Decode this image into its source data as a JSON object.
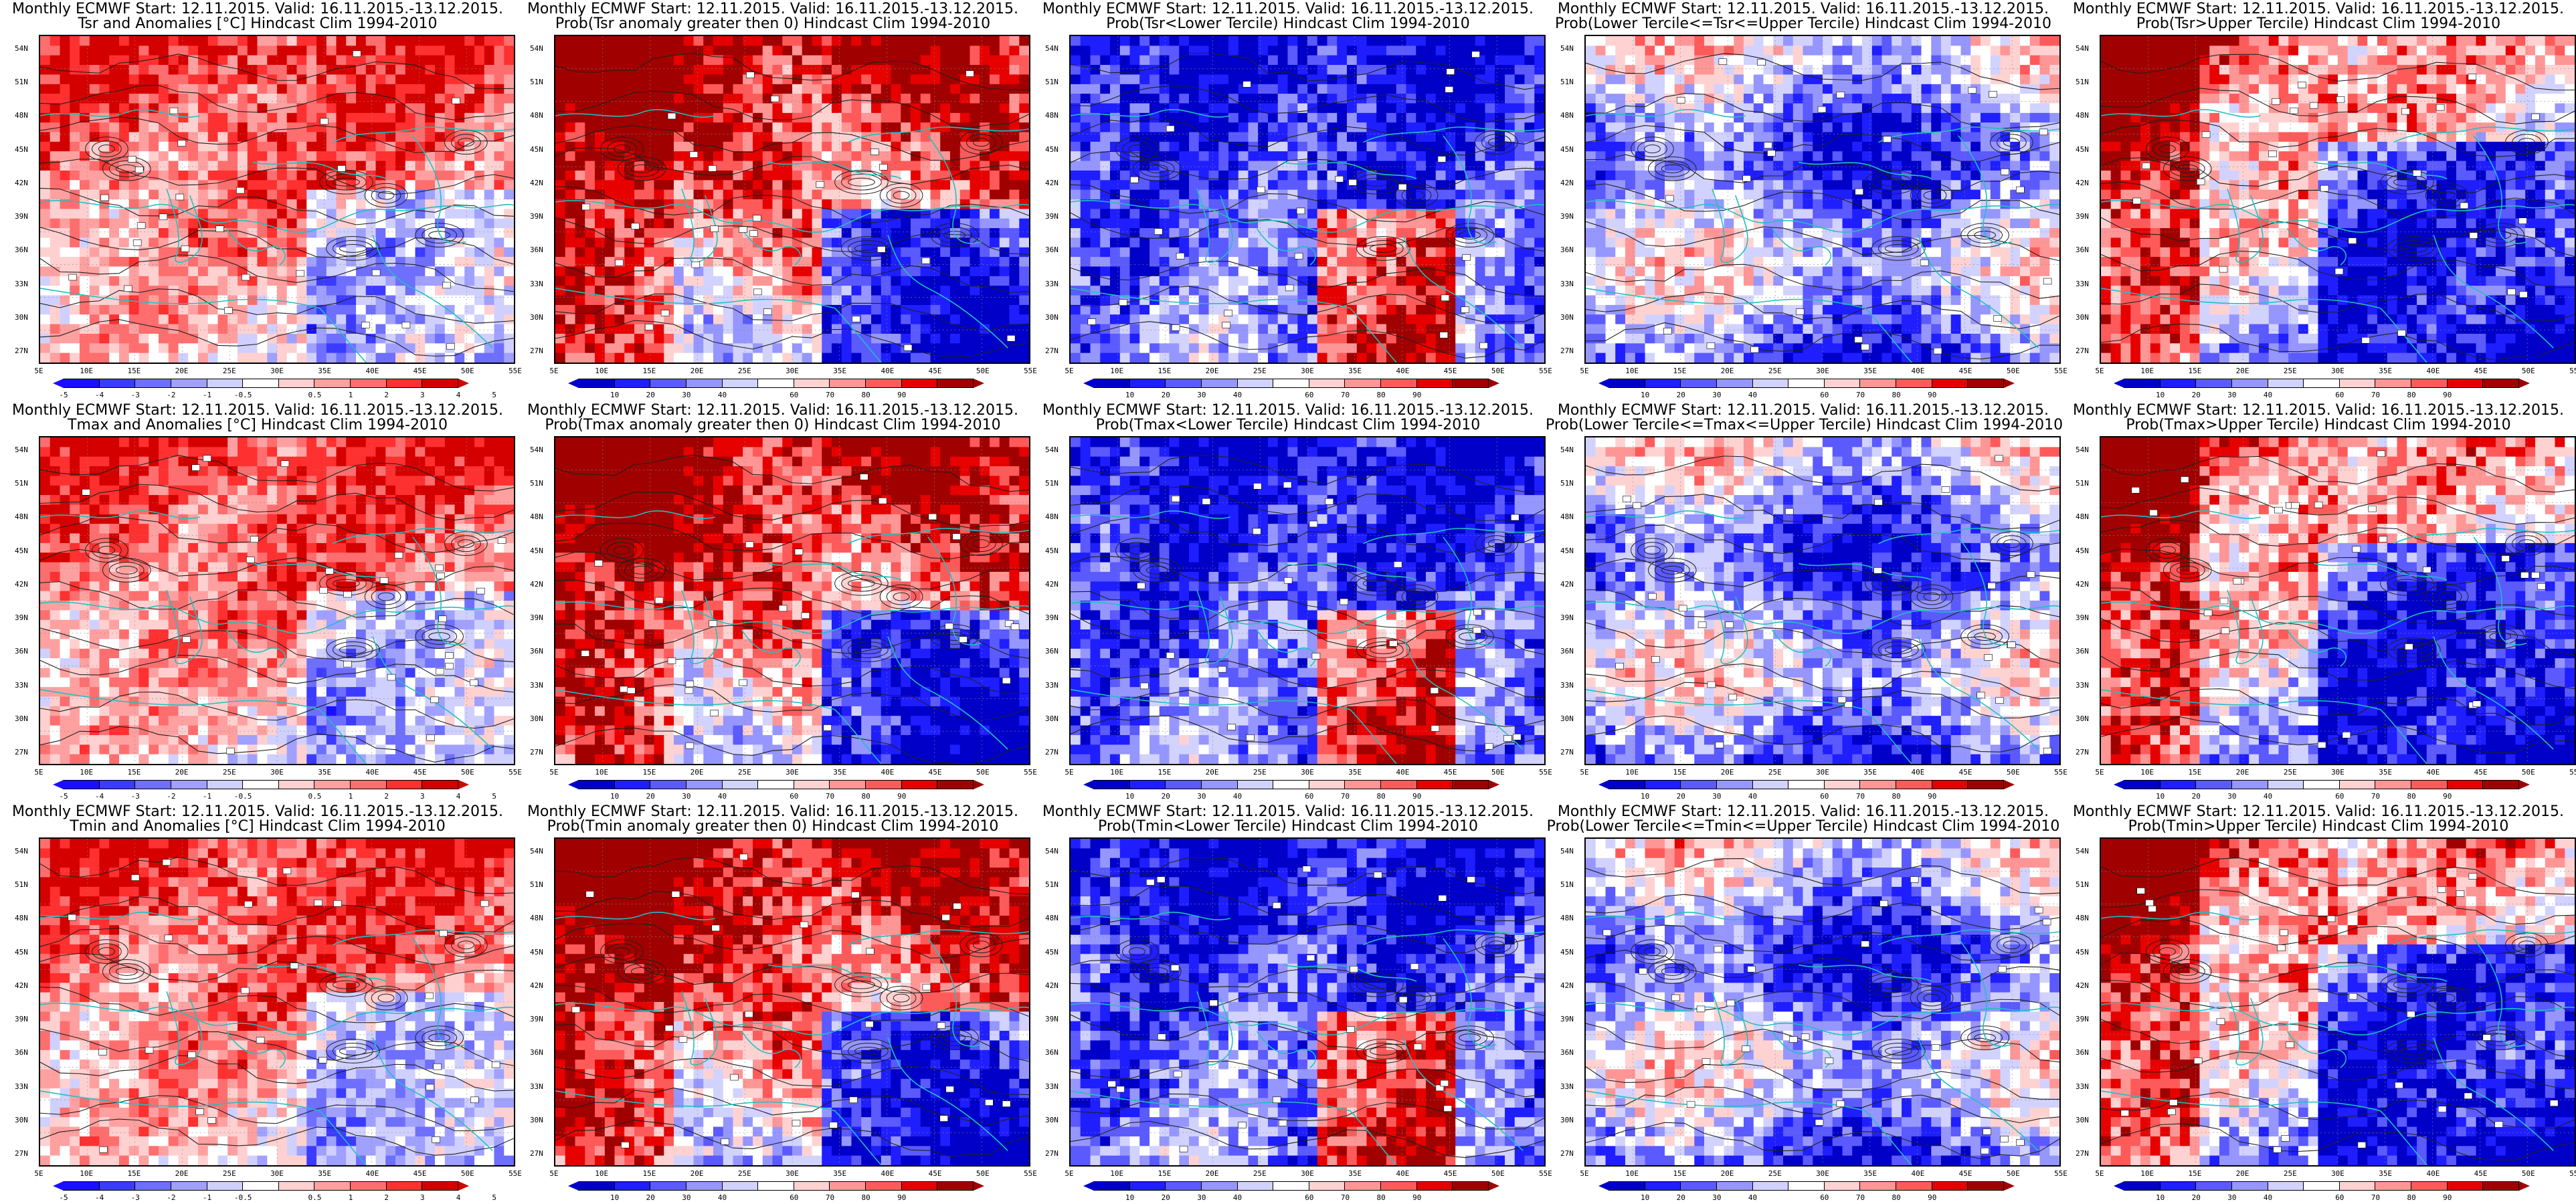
{
  "header_prefix": "Monthly ECMWF Start: 12.11.2015. Valid: 16.11.2015.-13.12.2015.",
  "lat_labels": [
    "54N",
    "51N",
    "48N",
    "45N",
    "42N",
    "39N",
    "36N",
    "33N",
    "30N",
    "27N"
  ],
  "lon_labels": [
    "5E",
    "10E",
    "15E",
    "20E",
    "25E",
    "30E",
    "35E",
    "40E",
    "45E",
    "50E",
    "55E"
  ],
  "colors": {
    "anom": [
      "#1a10ff",
      "#3b3bff",
      "#6e6eff",
      "#a0a0ff",
      "#d0d0ff",
      "#ffffff",
      "#ffd0d0",
      "#ffa0a0",
      "#ff6e6e",
      "#ff3030",
      "#d40000"
    ],
    "prob": [
      "#0000c8",
      "#1e1eff",
      "#5a5aff",
      "#9696ff",
      "#d2d2ff",
      "#ffffff",
      "#ffd2d2",
      "#ff9696",
      "#ff5a5a",
      "#e60000",
      "#a00000"
    ],
    "coast": "#20c0c0",
    "contour": "#202020"
  },
  "anom_ticks": [
    "-5",
    "-4",
    "-3",
    "-2",
    "-1",
    "-0.5",
    "0.5",
    "1",
    "2",
    "3",
    "4",
    "5"
  ],
  "prob_ticks": [
    "10",
    "20",
    "30",
    "40",
    "60",
    "70",
    "80",
    "90"
  ],
  "rows": [
    {
      "id": "tsr",
      "panels": [
        {
          "line2": "Tsr and Anomalies [°C] Hindcast Clim 1994-2010",
          "kind": "anom",
          "pattern": "anom"
        },
        {
          "line2": "Prob(Tsr anomaly greater then 0) Hindcast Clim 1994-2010",
          "kind": "prob",
          "pattern": "gt0"
        },
        {
          "line2": "Prob(Tsr<Lower Tercile) Hindcast Clim 1994-2010",
          "kind": "prob",
          "pattern": "lower"
        },
        {
          "line2": "Prob(Lower Tercile<=Tsr<=Upper Tercile) Hindcast Clim 1994-2010",
          "kind": "prob",
          "pattern": "middle"
        },
        {
          "line2": "Prob(Tsr>Upper Tercile) Hindcast Clim 1994-2010",
          "kind": "prob",
          "pattern": "upper"
        }
      ]
    },
    {
      "id": "tmax",
      "panels": [
        {
          "line2": "Tmax and Anomalies [°C] Hindcast Clim 1994-2010",
          "kind": "anom",
          "pattern": "anom"
        },
        {
          "line2": "Prob(Tmax anomaly greater then 0) Hindcast Clim 1994-2010",
          "kind": "prob",
          "pattern": "gt0"
        },
        {
          "line2": "Prob(Tmax<Lower Tercile) Hindcast Clim 1994-2010",
          "kind": "prob",
          "pattern": "lower"
        },
        {
          "line2": "Prob(Lower Tercile<=Tmax<=Upper Tercile) Hindcast Clim 1994-2010",
          "kind": "prob",
          "pattern": "middle"
        },
        {
          "line2": "Prob(Tmax>Upper Tercile) Hindcast Clim 1994-2010",
          "kind": "prob",
          "pattern": "upper"
        }
      ]
    },
    {
      "id": "tmin",
      "panels": [
        {
          "line2": "Tmin and Anomalies [°C] Hindcast Clim 1994-2010",
          "kind": "anom",
          "pattern": "anom"
        },
        {
          "line2": "Prob(Tmin anomaly greater then 0) Hindcast Clim 1994-2010",
          "kind": "prob",
          "pattern": "gt0"
        },
        {
          "line2": "Prob(Tmin<Lower Tercile) Hindcast Clim 1994-2010",
          "kind": "prob",
          "pattern": "lower"
        },
        {
          "line2": "Prob(Lower Tercile<=Tmin<=Upper Tercile) Hindcast Clim 1994-2010",
          "kind": "prob",
          "pattern": "middle"
        },
        {
          "line2": "Prob(Tmin>Upper Tercile) Hindcast Clim 1994-2010",
          "kind": "prob",
          "pattern": "upper"
        }
      ]
    }
  ]
}
